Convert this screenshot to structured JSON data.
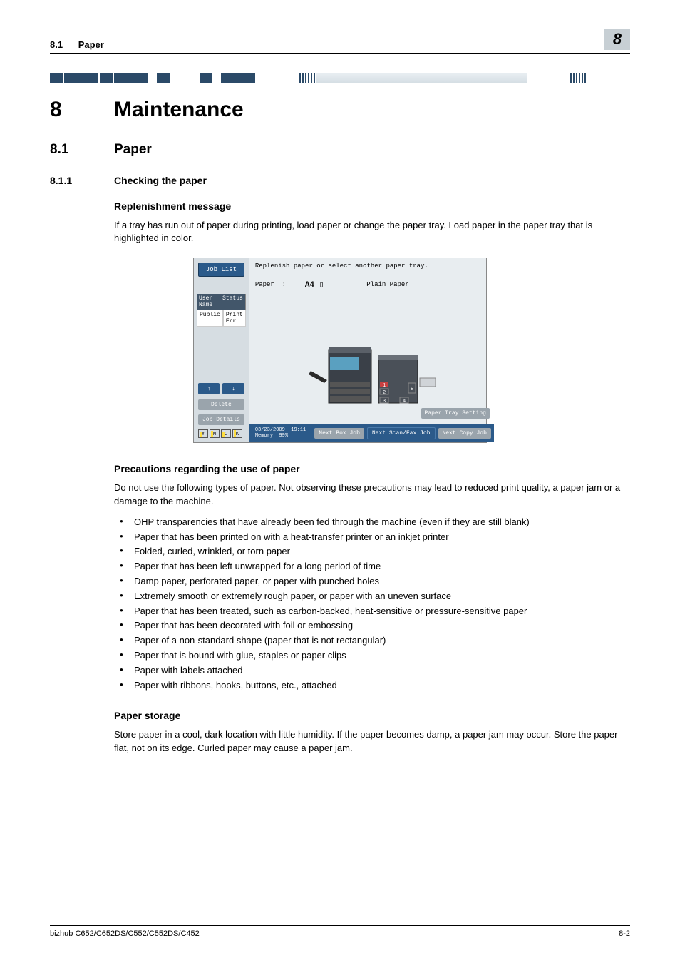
{
  "header": {
    "section_num": "8.1",
    "section_title": "Paper",
    "chapter_badge": "8"
  },
  "chapter": {
    "num": "8",
    "title": "Maintenance"
  },
  "sec": {
    "num": "8.1",
    "title": "Paper"
  },
  "subsec": {
    "num": "8.1.1",
    "title": "Checking the paper"
  },
  "replenish": {
    "heading": "Replenishment message",
    "body": "If a tray has run out of paper during printing, load paper or change the paper tray. Load paper in the paper tray that is highlighted in color."
  },
  "screen": {
    "job_list": "Job List",
    "status_hdr1": "User Name",
    "status_hdr2": "Status",
    "status_row1": "Public",
    "status_row2": "Print Err",
    "delete": "Delete",
    "job_details": "Job Details",
    "msg": "Replenish paper or select another paper tray.",
    "paper_lbl": "Paper",
    "paper_size": "A4 ▯",
    "paper_type": "Plain Paper",
    "tray1": "1",
    "tray2": "2",
    "tray3": "3",
    "tray4": "4",
    "trayE": "E",
    "paper_tray_setting": "Paper Tray Setting",
    "date": "03/23/2009",
    "time": "19:11",
    "memory": "Memory",
    "mempct": "99%",
    "next_box": "Next Box Job",
    "next_scan": "Next Scan/Fax Job",
    "next_copy": "Next Copy Job",
    "toner": {
      "y": "Y",
      "m": "M",
      "c": "C",
      "k": "K"
    }
  },
  "precautions": {
    "heading": "Precautions regarding the use of paper",
    "intro": "Do not use the following types of paper. Not observing these precautions may lead to reduced print quality, a paper jam or a damage to the machine.",
    "items": [
      "OHP transparencies that have already been fed through the machine (even if they are still blank)",
      "Paper that has been printed on with a heat-transfer printer or an inkjet printer",
      "Folded, curled, wrinkled, or torn paper",
      "Paper that has been left unwrapped for a long period of time",
      "Damp paper, perforated paper, or paper with punched holes",
      "Extremely smooth or extremely rough paper, or paper with an uneven surface",
      "Paper that has been treated, such as carbon-backed, heat-sensitive or pressure-sensitive paper",
      "Paper that has been decorated with foil or embossing",
      "Paper of a non-standard shape (paper that is not rectangular)",
      "Paper that is bound with glue, staples or paper clips",
      "Paper with labels attached",
      "Paper with ribbons, hooks, buttons, etc., attached"
    ]
  },
  "storage": {
    "heading": "Paper storage",
    "body": "Store paper in a cool, dark location with little humidity. If the paper becomes damp, a paper jam may occur. Store the paper flat, not on its edge. Curled paper may cause a paper jam."
  },
  "footer": {
    "model": "bizhub C652/C652DS/C552/C552DS/C452",
    "page": "8-2"
  },
  "colors": {
    "dark_blue": "#2b4a68",
    "panel_blue": "#2b5a8a",
    "grey_btn": "#9aa4ac",
    "header_grey": "#c7cfd4"
  }
}
